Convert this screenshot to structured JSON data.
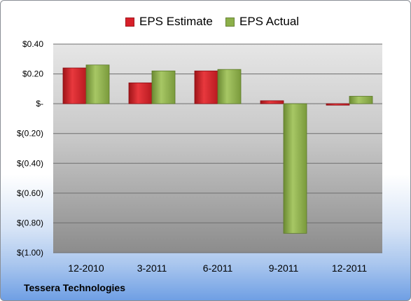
{
  "company": "Tessera Technologies",
  "chart_data": {
    "type": "bar",
    "categories": [
      "12-2010",
      "3-2011",
      "6-2011",
      "9-2011",
      "12-2011"
    ],
    "series": [
      {
        "name": "EPS Estimate",
        "color": "#d7202a",
        "values": [
          0.24,
          0.14,
          0.22,
          0.02,
          -0.01
        ]
      },
      {
        "name": "EPS Actual",
        "color": "#8cb04a",
        "values": [
          0.26,
          0.22,
          0.23,
          -0.87,
          0.05
        ]
      }
    ],
    "ylim": [
      -1.0,
      0.4
    ],
    "yticks": [
      0.4,
      0.2,
      0.0,
      -0.2,
      -0.4,
      -0.6,
      -0.8,
      -1.0
    ],
    "ytick_labels": [
      "$0.40",
      "$0.20",
      "$-",
      "$(0.20)",
      "$(0.40)",
      "$(0.60)",
      "$(0.80)",
      "$(1.00)"
    ],
    "legend_position": "top",
    "grid": true
  }
}
